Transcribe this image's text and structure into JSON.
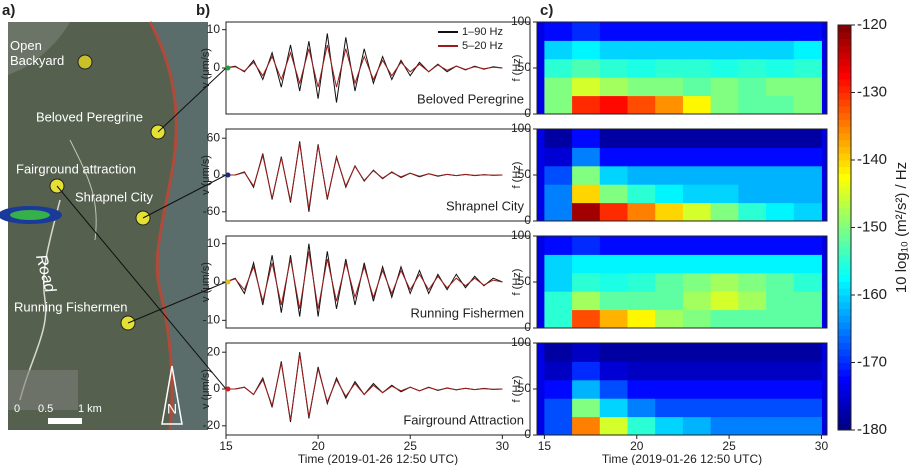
{
  "panel_labels": [
    "a)",
    "b)",
    "c)"
  ],
  "map": {
    "labels": [
      "Open Backyard",
      "Beloved Peregrine",
      "Fairground attraction",
      "Shrapnel City",
      "Road",
      "Running Fishermen"
    ],
    "scale": [
      "0",
      "0.5",
      "1 km"
    ],
    "north": "N"
  },
  "chart_data": [
    {
      "type": "line",
      "title": "Beloved Peregrine",
      "ylabel": "v (μm/s)",
      "legend": "upper right",
      "x": [
        15,
        15.5,
        16,
        16.5,
        17,
        17.5,
        18,
        18.5,
        19,
        19.5,
        20,
        20.5,
        21,
        21.5,
        22,
        22.5,
        23,
        23.5,
        24,
        24.5,
        25,
        25.5,
        26,
        26.5,
        27,
        27.5,
        28,
        28.5,
        29,
        29.5,
        30
      ],
      "series": [
        {
          "name": "1–90 Hz",
          "color": "#111111",
          "values": [
            0,
            0.5,
            -1,
            2,
            -3,
            4,
            -5,
            6,
            -6,
            7,
            -8,
            9,
            -9,
            8,
            -6,
            5,
            -4,
            3,
            -3,
            2,
            -2,
            1.5,
            -1,
            1,
            -1,
            0.5,
            -0.5,
            0.5,
            -0.3,
            0.3,
            0
          ]
        },
        {
          "name": "5–20 Hz",
          "color": "#9b1c1c",
          "values": [
            0,
            0.3,
            -0.8,
            1.5,
            -2,
            3,
            -3,
            4,
            -4,
            5,
            -5,
            6,
            -5,
            5,
            -4,
            3,
            -3,
            2,
            -2,
            1.5,
            -1,
            1,
            -1,
            0.8,
            -0.6,
            0.5,
            -0.4,
            0.3,
            -0.2,
            0.2,
            0
          ]
        }
      ],
      "xlim": [
        15,
        31.5
      ],
      "ylim": [
        -12,
        12
      ],
      "yticks": [
        0,
        10
      ]
    },
    {
      "type": "line",
      "title": "Shrapnel City",
      "ylabel": "v (μm/s)",
      "x": [
        15,
        15.5,
        16,
        16.5,
        17,
        17.5,
        18,
        18.5,
        19,
        19.5,
        20,
        20.5,
        21,
        21.5,
        22,
        22.5,
        23,
        23.5,
        24,
        24.5,
        25,
        25.5,
        26,
        26.5,
        27,
        27.5,
        28,
        28.5,
        29,
        29.5,
        30
      ],
      "series": [
        {
          "color": "#111111",
          "values": [
            0,
            0,
            5,
            -20,
            35,
            -40,
            30,
            -45,
            55,
            -60,
            50,
            -40,
            30,
            -20,
            15,
            -10,
            8,
            -6,
            5,
            -4,
            3,
            -3,
            2,
            -2,
            1,
            -1,
            1,
            -1,
            0.5,
            -0.5,
            0
          ]
        },
        {
          "color": "#9b1c1c",
          "values": [
            0,
            0,
            4,
            -18,
            32,
            -38,
            28,
            -42,
            52,
            -55,
            48,
            -38,
            28,
            -18,
            14,
            -9,
            7,
            -5,
            4,
            -3,
            3,
            -2,
            2,
            -1.5,
            1,
            -1,
            0.8,
            -0.6,
            0.4,
            -0.3,
            0
          ]
        }
      ],
      "xlim": [
        15,
        31.5
      ],
      "ylim": [
        -75,
        75
      ],
      "yticks": [
        -60,
        0,
        60
      ]
    },
    {
      "type": "line",
      "title": "Running Fishermen",
      "ylabel": "v (μm/s)",
      "x": [
        15,
        15.5,
        16,
        16.5,
        17,
        17.5,
        18,
        18.5,
        19,
        19.5,
        20,
        20.5,
        21,
        21.5,
        22,
        22.5,
        23,
        23.5,
        24,
        24.5,
        25,
        25.5,
        26,
        26.5,
        27,
        27.5,
        28,
        28.5,
        29,
        29.5,
        30
      ],
      "series": [
        {
          "color": "#111111",
          "values": [
            0,
            1,
            -3,
            5,
            -6,
            7,
            -8,
            7,
            -9,
            10,
            -9,
            8,
            -7,
            6,
            -6,
            5,
            -5,
            4,
            -4,
            4,
            -3,
            3,
            -3,
            2,
            -2,
            2,
            -1.5,
            1.5,
            -1,
            1,
            0
          ]
        },
        {
          "color": "#9b1c1c",
          "values": [
            0,
            0.8,
            -2,
            4,
            -5,
            5,
            -6,
            6,
            -7,
            8,
            -7,
            6,
            -5,
            5,
            -4,
            4,
            -4,
            3,
            -3,
            3,
            -2,
            2,
            -2,
            1.5,
            -1.5,
            1,
            -1,
            1,
            -0.8,
            0.5,
            0
          ]
        }
      ],
      "xlim": [
        15,
        31.5
      ],
      "ylim": [
        -12,
        12
      ],
      "yticks": [
        -10,
        0,
        10
      ]
    },
    {
      "type": "line",
      "title": "Fairground Attraction",
      "ylabel": "v (μm/s)",
      "xlabel": "Time (2019-01-26 12:50 UTC)",
      "x": [
        15,
        15.5,
        16,
        16.5,
        17,
        17.5,
        18,
        18.5,
        19,
        19.5,
        20,
        20.5,
        21,
        21.5,
        22,
        22.5,
        23,
        23.5,
        24,
        24.5,
        25,
        25.5,
        26,
        26.5,
        27,
        27.5,
        28,
        28.5,
        29,
        29.5,
        30
      ],
      "series": [
        {
          "color": "#111111",
          "values": [
            0,
            0,
            1,
            -3,
            6,
            -10,
            15,
            -18,
            20,
            -16,
            12,
            -8,
            6,
            -5,
            4,
            -3,
            3,
            -2,
            2,
            -1.5,
            1,
            -1,
            1,
            -0.8,
            0.6,
            -0.5,
            0.4,
            -0.3,
            0.3,
            -0.2,
            0
          ]
        },
        {
          "color": "#9b1c1c",
          "values": [
            0,
            0,
            1,
            -3,
            5,
            -9,
            14,
            -17,
            19,
            -15,
            11,
            -7,
            5,
            -4,
            3,
            -3,
            2,
            -2,
            1.5,
            -1,
            1,
            -1,
            0.8,
            -0.6,
            0.5,
            -0.4,
            0.3,
            -0.3,
            0.2,
            -0.2,
            0
          ]
        }
      ],
      "xlim": [
        15,
        31.5
      ],
      "ylim": [
        -25,
        25
      ],
      "yticks": [
        -20,
        0,
        20
      ],
      "xticks": [
        15,
        20,
        25,
        30
      ]
    },
    {
      "type": "heatmap",
      "ylabel": "f (Hz)",
      "x": [
        15.75,
        17.25,
        18.75,
        20.25,
        21.75,
        23.25,
        24.75,
        26.25,
        27.75,
        29.25
      ],
      "y": [
        10,
        30,
        50,
        70,
        90
      ],
      "z": [
        [
          -150,
          -130,
          -128,
          -132,
          -136,
          -142,
          -150,
          -152,
          -152,
          -150
        ],
        [
          -150,
          -145,
          -148,
          -150,
          -150,
          -152,
          -150,
          -152,
          -150,
          -150
        ],
        [
          -155,
          -153,
          -155,
          -156,
          -155,
          -155,
          -156,
          -155,
          -156,
          -155
        ],
        [
          -160,
          -158,
          -160,
          -160,
          -160,
          -160,
          -160,
          -160,
          -160,
          -158
        ],
        [
          -172,
          -170,
          -172,
          -172,
          -172,
          -172,
          -172,
          -172,
          -172,
          -172
        ]
      ],
      "xlim": [
        14.6,
        30.3
      ],
      "ylim": [
        0,
        100
      ],
      "yticks": [
        0,
        50,
        100
      ],
      "clim": [
        -180,
        -120
      ]
    },
    {
      "type": "heatmap",
      "ylabel": "f (Hz)",
      "x": [
        15.75,
        17.25,
        18.75,
        20.25,
        21.75,
        23.25,
        24.75,
        26.25,
        27.75,
        29.25
      ],
      "y": [
        10,
        30,
        50,
        70,
        90
      ],
      "z": [
        [
          -165,
          -122,
          -130,
          -135,
          -140,
          -145,
          -150,
          -155,
          -158,
          -160
        ],
        [
          -165,
          -140,
          -150,
          -155,
          -158,
          -160,
          -160,
          -162,
          -162,
          -162
        ],
        [
          -168,
          -150,
          -160,
          -162,
          -162,
          -162,
          -162,
          -162,
          -162,
          -162
        ],
        [
          -175,
          -165,
          -172,
          -172,
          -172,
          -172,
          -172,
          -172,
          -172,
          -172
        ],
        [
          -178,
          -172,
          -178,
          -178,
          -178,
          -178,
          -178,
          -178,
          -178,
          -178
        ]
      ],
      "xlim": [
        14.6,
        30.3
      ],
      "ylim": [
        0,
        100
      ],
      "yticks": [
        0,
        50,
        100
      ],
      "clim": [
        -180,
        -120
      ]
    },
    {
      "type": "heatmap",
      "ylabel": "f (Hz)",
      "x": [
        15.75,
        17.25,
        18.75,
        20.25,
        21.75,
        23.25,
        24.75,
        26.25,
        27.75,
        29.25
      ],
      "y": [
        10,
        30,
        50,
        70,
        90
      ],
      "z": [
        [
          -155,
          -132,
          -138,
          -142,
          -148,
          -150,
          -152,
          -152,
          -152,
          -152
        ],
        [
          -155,
          -148,
          -152,
          -152,
          -152,
          -148,
          -145,
          -148,
          -152,
          -152
        ],
        [
          -160,
          -155,
          -156,
          -155,
          -152,
          -150,
          -148,
          -150,
          -152,
          -155
        ],
        [
          -160,
          -158,
          -158,
          -158,
          -158,
          -158,
          -158,
          -158,
          -158,
          -158
        ],
        [
          -172,
          -170,
          -172,
          -172,
          -172,
          -172,
          -172,
          -172,
          -172,
          -172
        ]
      ],
      "xlim": [
        14.6,
        30.3
      ],
      "ylim": [
        0,
        100
      ],
      "yticks": [
        0,
        50,
        100
      ],
      "clim": [
        -180,
        -120
      ]
    },
    {
      "type": "heatmap",
      "ylabel": "f (Hz)",
      "xlabel": "Time (2019-01-26 12:50 UTC)",
      "x": [
        15.75,
        17.25,
        18.75,
        20.25,
        21.75,
        23.25,
        24.75,
        26.25,
        27.75,
        29.25
      ],
      "y": [
        10,
        30,
        50,
        70,
        90
      ],
      "z": [
        [
          -168,
          -135,
          -145,
          -155,
          -160,
          -162,
          -165,
          -165,
          -165,
          -165
        ],
        [
          -168,
          -150,
          -160,
          -165,
          -168,
          -168,
          -168,
          -168,
          -168,
          -168
        ],
        [
          -172,
          -162,
          -168,
          -172,
          -172,
          -172,
          -172,
          -172,
          -172,
          -172
        ],
        [
          -176,
          -170,
          -175,
          -176,
          -176,
          -176,
          -176,
          -176,
          -176,
          -176
        ],
        [
          -178,
          -176,
          -178,
          -178,
          -178,
          -178,
          -178,
          -178,
          -178,
          -178
        ]
      ],
      "xlim": [
        14.6,
        30.3
      ],
      "ylim": [
        0,
        100
      ],
      "yticks": [
        0,
        50,
        100
      ],
      "xticks": [
        15,
        20,
        25,
        30
      ],
      "clim": [
        -180,
        -120
      ]
    },
    {
      "type": "colorbar",
      "label": "10 log₁₀ (m²/s²) / Hz",
      "clim": [
        -180,
        -120
      ],
      "ticks": [
        -120,
        -130,
        -140,
        -150,
        -160,
        -170,
        -180
      ]
    }
  ]
}
